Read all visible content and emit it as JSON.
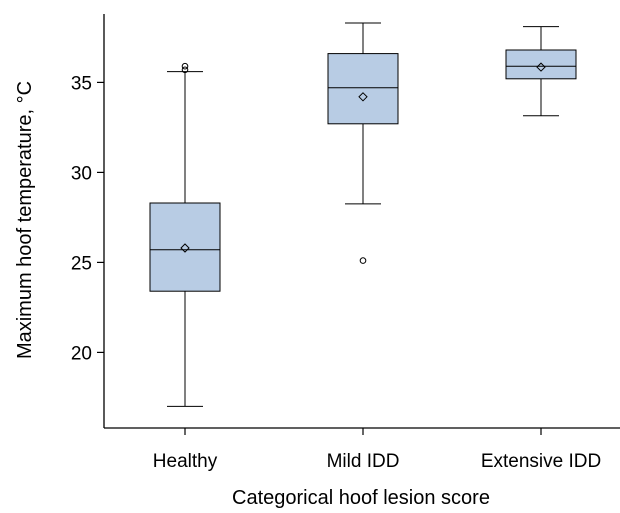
{
  "chart_data": {
    "type": "boxplot",
    "title": "",
    "xlabel": "Categorical hoof lesion score",
    "ylabel": "Maximum hoof temperature, °C",
    "ylim": [
      15.8,
      38.8
    ],
    "yticks": [
      20,
      25,
      30,
      35
    ],
    "grid": false,
    "legend": false,
    "categories": [
      "Healthy",
      "Mild IDD",
      "Extensive IDD"
    ],
    "boxes": [
      {
        "category": "Healthy",
        "whisker_low": 17.0,
        "q1": 23.4,
        "median": 25.7,
        "q3": 28.3,
        "whisker_high": 35.6,
        "mean": 25.8,
        "outliers": [
          35.7,
          35.9
        ]
      },
      {
        "category": "Mild IDD",
        "whisker_low": 28.25,
        "q1": 32.7,
        "median": 34.7,
        "q3": 36.6,
        "whisker_high": 38.3,
        "mean": 34.2,
        "outliers": [
          25.1
        ]
      },
      {
        "category": "Extensive IDD",
        "whisker_low": 33.15,
        "q1": 35.2,
        "median": 35.9,
        "q3": 36.8,
        "whisker_high": 38.1,
        "mean": 35.85,
        "outliers": []
      }
    ],
    "colors": {
      "box_fill": "#b8cce4",
      "line": "#000000"
    }
  }
}
